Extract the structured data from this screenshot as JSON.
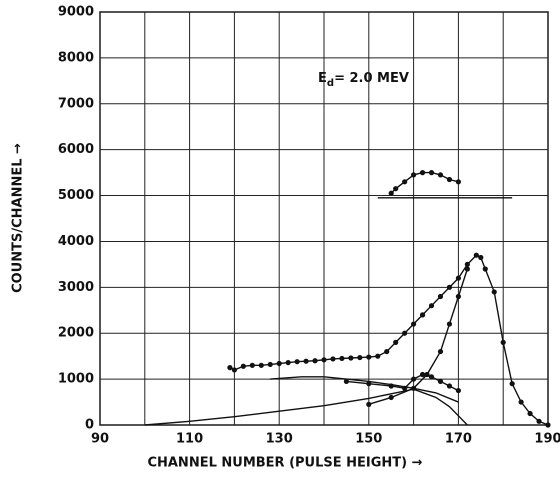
{
  "chart_data": {
    "type": "line",
    "annotation": {
      "main": "E",
      "sub": "d",
      "rest": "= 2.0 MEV"
    },
    "xlabel": "CHANNEL NUMBER (PULSE HEIGHT) →",
    "ylabel": "COUNTS/CHANNEL →",
    "xlim": [
      90,
      190
    ],
    "ylim": [
      0,
      9000
    ],
    "xticks": [
      90,
      110,
      130,
      150,
      170,
      190
    ],
    "xminor": [
      100,
      120,
      140,
      160,
      180
    ],
    "yticks": [
      0,
      1000,
      2000,
      3000,
      4000,
      5000,
      6000,
      7000,
      8000,
      9000
    ],
    "grid": true,
    "color": "#111111",
    "series": [
      {
        "color": "#111111",
        "markers": true,
        "x": [
          119,
          120,
          122,
          124,
          126,
          128,
          130,
          132,
          134,
          136,
          138,
          140,
          142,
          144,
          146,
          148,
          150,
          152,
          154,
          156,
          158,
          160,
          162,
          164,
          166,
          168,
          170,
          172,
          174,
          175,
          176,
          178,
          180,
          182,
          184,
          186,
          188,
          190
        ],
        "values": [
          1250,
          1200,
          1280,
          1300,
          1300,
          1320,
          1340,
          1360,
          1380,
          1390,
          1400,
          1420,
          1440,
          1450,
          1460,
          1470,
          1480,
          1500,
          1600,
          1800,
          2000,
          2200,
          2400,
          2600,
          2800,
          3000,
          3200,
          3500,
          3700,
          3650,
          3400,
          2900,
          1800,
          900,
          500,
          250,
          80,
          0
        ]
      },
      {
        "color": "#111111",
        "markers": true,
        "x": [
          150,
          155,
          160,
          163,
          166,
          168,
          170,
          172
        ],
        "values": [
          450,
          600,
          800,
          1100,
          1600,
          2200,
          2800,
          3400
        ]
      },
      {
        "color": "#111111",
        "markers": true,
        "x": [
          145,
          150,
          155,
          158,
          160,
          162,
          164,
          166,
          168,
          170
        ],
        "values": [
          950,
          900,
          850,
          800,
          1000,
          1100,
          1050,
          950,
          850,
          750
        ]
      },
      {
        "color": "#111111",
        "markers": true,
        "x": [
          155,
          156,
          158,
          160,
          162,
          164,
          166,
          168,
          170
        ],
        "values": [
          5050,
          5150,
          5300,
          5450,
          5500,
          5500,
          5450,
          5350,
          5300
        ]
      },
      {
        "color": "#111111",
        "markers": false,
        "x": [
          100,
          110,
          120,
          130,
          140,
          150,
          155,
          160,
          165,
          168,
          170,
          172
        ],
        "values": [
          0,
          80,
          180,
          300,
          420,
          580,
          680,
          780,
          600,
          400,
          200,
          0
        ]
      },
      {
        "color": "#111111",
        "markers": false,
        "x": [
          128,
          135,
          140,
          145,
          150,
          155,
          160,
          165,
          170
        ],
        "values": [
          1000,
          1050,
          1050,
          1000,
          950,
          880,
          800,
          700,
          500
        ]
      },
      {
        "color": "#111111",
        "markers": false,
        "x": [
          152,
          182
        ],
        "values": [
          4950,
          4950
        ]
      }
    ]
  }
}
